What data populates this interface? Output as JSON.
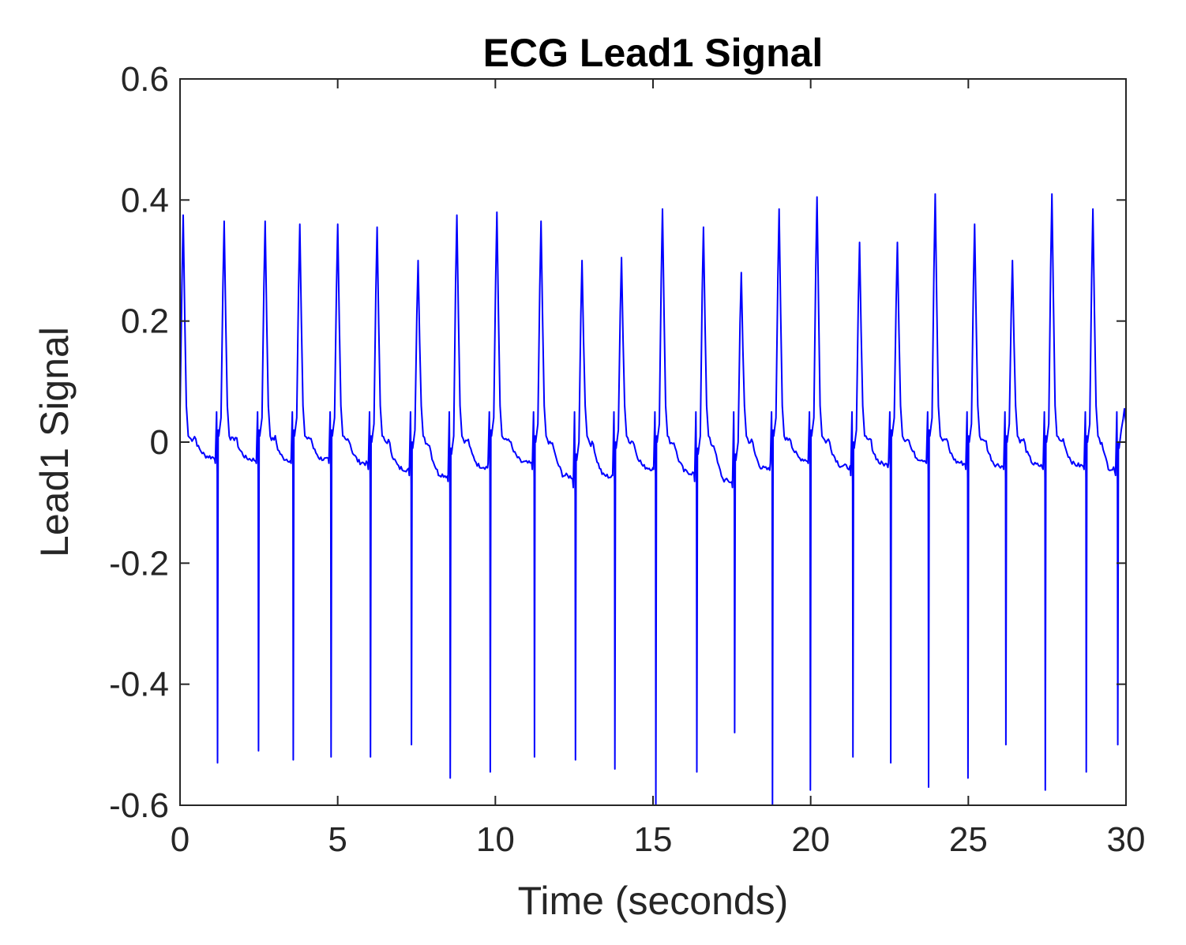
{
  "chart_data": {
    "type": "line",
    "title": "ECG Lead1 Signal",
    "xlabel": "Time (seconds)",
    "ylabel": "Lead1 Signal",
    "xlim": [
      0,
      30
    ],
    "ylim": [
      -0.6,
      0.6
    ],
    "xticks": [
      0,
      5,
      10,
      15,
      20,
      25,
      30
    ],
    "xtick_labels": [
      "0",
      "5",
      "10",
      "15",
      "20",
      "25",
      "30"
    ],
    "yticks": [
      -0.6,
      -0.4,
      -0.2,
      0,
      0.2,
      0.4,
      0.6
    ],
    "ytick_labels": [
      "-0.6",
      "-0.4",
      "-0.2",
      "0",
      "0.2",
      "0.4",
      "0.6"
    ],
    "grid": false,
    "line_color": "#0000ff",
    "beats": [
      {
        "t": 0.1,
        "peak": 0.375,
        "trough": null,
        "baseline": -0.02
      },
      {
        "t": 1.4,
        "peak": 0.365,
        "trough": -0.53,
        "baseline": -0.03
      },
      {
        "t": 2.7,
        "peak": 0.365,
        "trough": -0.51,
        "baseline": -0.03
      },
      {
        "t": 3.8,
        "peak": 0.36,
        "trough": -0.525,
        "baseline": -0.03
      },
      {
        "t": 5.0,
        "peak": 0.36,
        "trough": -0.52,
        "baseline": -0.03
      },
      {
        "t": 6.25,
        "peak": 0.355,
        "trough": -0.52,
        "baseline": -0.04
      },
      {
        "t": 7.55,
        "peak": 0.3,
        "trough": -0.5,
        "baseline": -0.05
      },
      {
        "t": 8.78,
        "peak": 0.375,
        "trough": -0.555,
        "baseline": -0.06
      },
      {
        "t": 10.05,
        "peak": 0.38,
        "trough": -0.545,
        "baseline": -0.03
      },
      {
        "t": 11.45,
        "peak": 0.365,
        "trough": -0.52,
        "baseline": -0.04
      },
      {
        "t": 12.75,
        "peak": 0.3,
        "trough": -0.525,
        "baseline": -0.07
      },
      {
        "t": 14.0,
        "peak": 0.305,
        "trough": -0.54,
        "baseline": -0.05
      },
      {
        "t": 15.3,
        "peak": 0.385,
        "trough": -0.6,
        "baseline": -0.04
      },
      {
        "t": 16.6,
        "peak": 0.355,
        "trough": -0.545,
        "baseline": -0.06
      },
      {
        "t": 17.8,
        "peak": 0.28,
        "trough": -0.48,
        "baseline": -0.07
      },
      {
        "t": 19.0,
        "peak": 0.385,
        "trough": -0.6,
        "baseline": -0.03
      },
      {
        "t": 20.2,
        "peak": 0.405,
        "trough": -0.575,
        "baseline": -0.03
      },
      {
        "t": 21.55,
        "peak": 0.33,
        "trough": -0.52,
        "baseline": -0.05
      },
      {
        "t": 22.75,
        "peak": 0.33,
        "trough": -0.53,
        "baseline": -0.03
      },
      {
        "t": 23.95,
        "peak": 0.41,
        "trough": -0.57,
        "baseline": -0.03
      },
      {
        "t": 25.2,
        "peak": 0.36,
        "trough": -0.555,
        "baseline": -0.04
      },
      {
        "t": 26.4,
        "peak": 0.3,
        "trough": -0.5,
        "baseline": -0.04
      },
      {
        "t": 27.65,
        "peak": 0.41,
        "trough": -0.575,
        "baseline": -0.04
      },
      {
        "t": 28.95,
        "peak": 0.385,
        "trough": -0.545,
        "baseline": -0.04
      },
      {
        "t": 29.95,
        "peak": 0.055,
        "trough": -0.5,
        "baseline": -0.05
      }
    ]
  }
}
